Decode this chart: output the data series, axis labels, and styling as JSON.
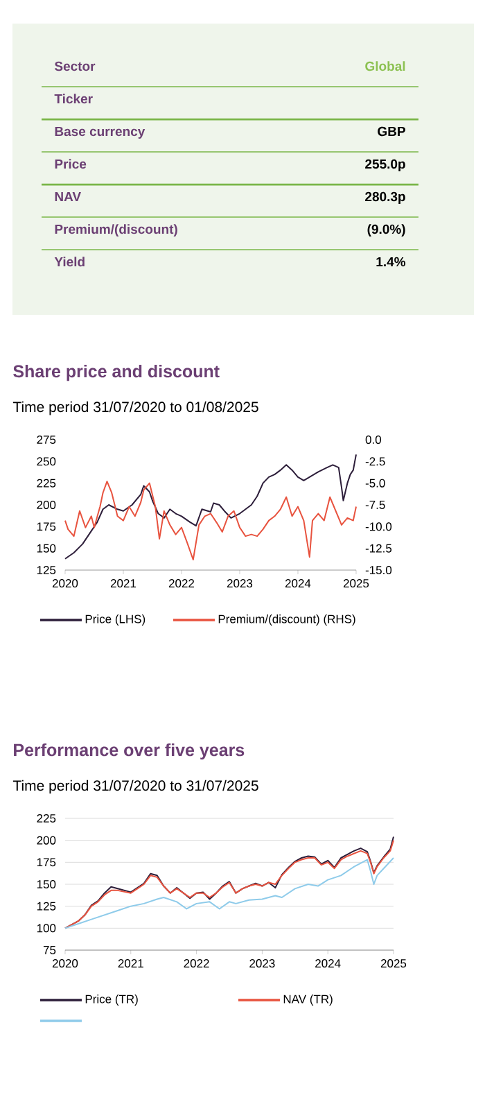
{
  "chart_data": [
    {
      "type": "other",
      "categories": [
        "Sector",
        "Ticker",
        "Base currency",
        "Price",
        "NAV",
        "Premium/(discount)",
        "Yield"
      ],
      "value_labels": [
        "Global",
        null,
        "GBP",
        "255.0p",
        "280.3p",
        "(9.0%)",
        "1.4%"
      ]
    },
    {
      "type": "line",
      "title": "Share price and discount",
      "subtitle": "Time period 31/07/2020 to 01/08/2025",
      "xlim": [
        2020,
        2025
      ],
      "xticks": [
        2020,
        2021,
        2022,
        2023,
        2024,
        2025
      ],
      "ylim": [
        125,
        275
      ],
      "yticks": [
        125,
        150,
        175,
        200,
        225,
        250,
        275
      ],
      "y2lim": [
        -15,
        0
      ],
      "y2ticks": [
        {
          "value": -15,
          "label": "-15.0"
        },
        {
          "value": -12.5,
          "label": "-12.5"
        },
        {
          "value": -10,
          "label": "-10.0"
        },
        {
          "value": -7.5,
          "label": "-7.5"
        },
        {
          "value": -5,
          "label": "-5.0"
        },
        {
          "value": -2.5,
          "label": "-2.5"
        },
        {
          "value": 0,
          "label": "0.0"
        }
      ],
      "legend": "bottom",
      "grid": false,
      "series": [
        {
          "name": "Price (LHS)",
          "color": "#2d1e3a",
          "x": [
            2020.0,
            2020.15,
            2020.3,
            2020.45,
            2020.55,
            2020.65,
            2020.75,
            2020.9,
            2021.0,
            2021.15,
            2021.3,
            2021.35,
            2021.45,
            2021.5,
            2021.6,
            2021.7,
            2021.8,
            2021.9,
            2022.0,
            2022.15,
            2022.25,
            2022.35,
            2022.5,
            2022.55,
            2022.65,
            2022.75,
            2022.85,
            2023.0,
            2023.1,
            2023.2,
            2023.3,
            2023.4,
            2023.5,
            2023.6,
            2023.7,
            2023.8,
            2023.9,
            2024.0,
            2024.1,
            2024.2,
            2024.35,
            2024.5,
            2024.6,
            2024.7,
            2024.75,
            2024.78,
            2024.85,
            2024.9,
            2024.95,
            2025.0
          ],
          "values": [
            138,
            145,
            155,
            170,
            180,
            195,
            200,
            195,
            193,
            200,
            212,
            222,
            215,
            205,
            190,
            185,
            195,
            190,
            187,
            180,
            176,
            195,
            192,
            202,
            200,
            192,
            185,
            190,
            195,
            200,
            210,
            225,
            232,
            235,
            240,
            246,
            240,
            232,
            228,
            232,
            238,
            243,
            246,
            243,
            220,
            205,
            225,
            235,
            240,
            258
          ]
        },
        {
          "name": "Premium/(discount) (RHS)",
          "color": "#e8533f",
          "axis": "y2",
          "x": [
            2020.0,
            2020.05,
            2020.15,
            2020.25,
            2020.35,
            2020.45,
            2020.5,
            2020.6,
            2020.65,
            2020.72,
            2020.8,
            2020.9,
            2021.0,
            2021.1,
            2021.2,
            2021.3,
            2021.35,
            2021.45,
            2021.55,
            2021.62,
            2021.7,
            2021.8,
            2021.9,
            2022.0,
            2022.1,
            2022.2,
            2022.3,
            2022.4,
            2022.5,
            2022.6,
            2022.7,
            2022.8,
            2022.9,
            2023.0,
            2023.1,
            2023.2,
            2023.3,
            2023.4,
            2023.5,
            2023.6,
            2023.7,
            2023.8,
            2023.9,
            2024.0,
            2024.1,
            2024.15,
            2024.2,
            2024.25,
            2024.35,
            2024.45,
            2024.55,
            2024.65,
            2024.75,
            2024.85,
            2024.95,
            2025.0
          ],
          "values": [
            -9.3,
            -10.3,
            -11.1,
            -8.2,
            -10.1,
            -8.8,
            -10.1,
            -7.7,
            -6.1,
            -4.8,
            -6.1,
            -8.8,
            -9.3,
            -7.7,
            -8.8,
            -7.2,
            -5.8,
            -5.0,
            -7.7,
            -11.4,
            -8.2,
            -9.8,
            -10.9,
            -10.1,
            -11.9,
            -13.8,
            -9.8,
            -8.8,
            -8.5,
            -9.5,
            -10.6,
            -8.8,
            -8.2,
            -10.1,
            -11.1,
            -10.9,
            -11.1,
            -10.3,
            -9.3,
            -8.8,
            -8.0,
            -6.6,
            -8.8,
            -7.7,
            -9.3,
            -11.4,
            -13.5,
            -9.3,
            -8.5,
            -9.3,
            -6.6,
            -8.2,
            -9.8,
            -9.0,
            -9.3,
            -7.7
          ]
        }
      ]
    },
    {
      "type": "line",
      "title": "Performance over five years",
      "subtitle": "Time period 31/07/2020 to 31/07/2025",
      "xlim": [
        2020,
        2025
      ],
      "xticks": [
        2020,
        2021,
        2022,
        2023,
        2024,
        2025
      ],
      "ylim": [
        75,
        225
      ],
      "yticks": [
        75,
        100,
        125,
        150,
        175,
        200,
        225
      ],
      "legend": "bottom",
      "grid": "y",
      "series": [
        {
          "name": "Price (TR)",
          "color": "#2d1e3a",
          "x": [
            2020.0,
            2020.2,
            2020.3,
            2020.4,
            2020.5,
            2020.6,
            2020.7,
            2020.8,
            2021.0,
            2021.1,
            2021.2,
            2021.3,
            2021.4,
            2021.5,
            2021.6,
            2021.7,
            2021.8,
            2021.9,
            2022.0,
            2022.1,
            2022.2,
            2022.3,
            2022.4,
            2022.5,
            2022.6,
            2022.7,
            2022.8,
            2022.9,
            2023.0,
            2023.1,
            2023.2,
            2023.3,
            2023.4,
            2023.5,
            2023.6,
            2023.7,
            2023.8,
            2023.9,
            2024.0,
            2024.1,
            2024.2,
            2024.3,
            2024.4,
            2024.5,
            2024.6,
            2024.65,
            2024.7,
            2024.75,
            2024.85,
            2024.95,
            2025.0
          ],
          "values": [
            100,
            108,
            115,
            126,
            131,
            140,
            147,
            145,
            141,
            146,
            151,
            162,
            160,
            148,
            140,
            146,
            140,
            134,
            140,
            141,
            133,
            140,
            148,
            153,
            140,
            145,
            148,
            151,
            148,
            152,
            146,
            161,
            169,
            176,
            180,
            182,
            181,
            173,
            177,
            169,
            180,
            184,
            188,
            191,
            187,
            176,
            163,
            171,
            181,
            190,
            204
          ]
        },
        {
          "name": "NAV (TR)",
          "color": "#e8533f",
          "x": [
            2020.0,
            2020.2,
            2020.3,
            2020.4,
            2020.5,
            2020.6,
            2020.7,
            2020.8,
            2021.0,
            2021.1,
            2021.2,
            2021.3,
            2021.4,
            2021.5,
            2021.6,
            2021.7,
            2021.8,
            2021.9,
            2022.0,
            2022.1,
            2022.2,
            2022.3,
            2022.4,
            2022.5,
            2022.6,
            2022.7,
            2022.8,
            2022.9,
            2023.0,
            2023.1,
            2023.2,
            2023.3,
            2023.4,
            2023.5,
            2023.6,
            2023.7,
            2023.8,
            2023.9,
            2024.0,
            2024.1,
            2024.2,
            2024.3,
            2024.4,
            2024.5,
            2024.6,
            2024.65,
            2024.7,
            2024.75,
            2024.85,
            2024.95,
            2025.0
          ],
          "values": [
            100,
            108,
            115,
            125,
            130,
            138,
            143,
            143,
            140,
            145,
            150,
            160,
            158,
            148,
            140,
            145,
            140,
            135,
            140,
            140,
            135,
            140,
            147,
            152,
            140,
            145,
            148,
            150,
            148,
            152,
            150,
            160,
            168,
            175,
            178,
            180,
            180,
            172,
            175,
            168,
            178,
            182,
            185,
            188,
            185,
            175,
            162,
            170,
            180,
            188,
            200
          ]
        },
        {
          "color": "#8ecbea",
          "x": [
            2020.0,
            2020.2,
            2020.4,
            2020.6,
            2020.8,
            2021.0,
            2021.2,
            2021.4,
            2021.5,
            2021.7,
            2021.85,
            2022.0,
            2022.2,
            2022.35,
            2022.5,
            2022.6,
            2022.8,
            2023.0,
            2023.2,
            2023.3,
            2023.5,
            2023.7,
            2023.85,
            2024.0,
            2024.2,
            2024.4,
            2024.6,
            2024.65,
            2024.7,
            2024.75,
            2024.85,
            2025.0
          ],
          "values": [
            100,
            105,
            110,
            115,
            120,
            125,
            128,
            133,
            135,
            130,
            122,
            128,
            130,
            122,
            130,
            128,
            132,
            133,
            137,
            135,
            145,
            150,
            148,
            155,
            160,
            170,
            178,
            165,
            150,
            160,
            168,
            180
          ]
        }
      ]
    }
  ]
}
